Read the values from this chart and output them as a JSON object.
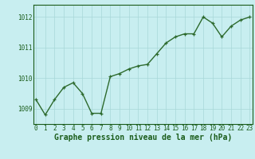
{
  "x": [
    0,
    1,
    2,
    3,
    4,
    5,
    6,
    7,
    8,
    9,
    10,
    11,
    12,
    13,
    14,
    15,
    16,
    17,
    18,
    19,
    20,
    21,
    22,
    23
  ],
  "y": [
    1009.3,
    1008.8,
    1009.3,
    1009.7,
    1009.85,
    1009.5,
    1008.85,
    1008.85,
    1010.05,
    1010.15,
    1010.3,
    1010.4,
    1010.45,
    1010.8,
    1011.15,
    1011.35,
    1011.45,
    1011.45,
    1012.0,
    1011.8,
    1011.35,
    1011.7,
    1011.9,
    1012.0
  ],
  "line_color": "#2d6a2d",
  "marker_color": "#2d6a2d",
  "bg_color": "#c8eef0",
  "grid_color": "#a8d8d8",
  "axis_label_color": "#1a5c1a",
  "tick_color": "#1a5c1a",
  "xlabel": "Graphe pression niveau de la mer (hPa)",
  "ylim": [
    1008.5,
    1012.4
  ],
  "yticks": [
    1009,
    1010,
    1011,
    1012
  ],
  "xticks": [
    0,
    1,
    2,
    3,
    4,
    5,
    6,
    7,
    8,
    9,
    10,
    11,
    12,
    13,
    14,
    15,
    16,
    17,
    18,
    19,
    20,
    21,
    22,
    23
  ],
  "marker_size": 3,
  "line_width": 1.0,
  "xlabel_fontsize": 7.0,
  "tick_fontsize": 5.5
}
